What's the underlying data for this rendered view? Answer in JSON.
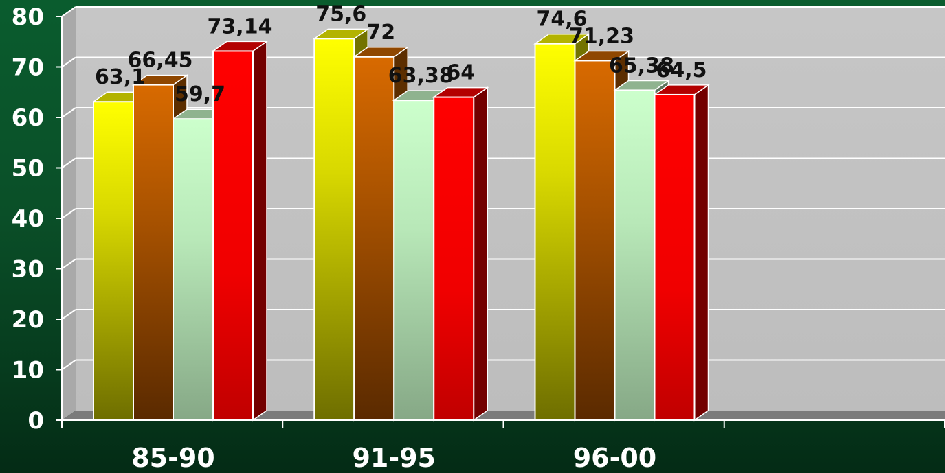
{
  "chart_data": {
    "type": "bar",
    "categories": [
      "85-90",
      "91-95",
      "96-00",
      ""
    ],
    "series": [
      {
        "values": [
          63.1,
          75.6,
          74.6,
          null
        ],
        "labels": [
          "63,1",
          "75,6",
          "74,6",
          ""
        ],
        "color": "#ffff00"
      },
      {
        "values": [
          66.45,
          72,
          71.23,
          null
        ],
        "labels": [
          "66,45",
          "72",
          "71,23",
          ""
        ],
        "color": "#cc6600"
      },
      {
        "values": [
          59.7,
          63.38,
          65.38,
          null
        ],
        "labels": [
          "59,7",
          "63,38",
          "65,38",
          ""
        ],
        "color": "#ccffcc"
      },
      {
        "values": [
          73.14,
          64,
          64.5,
          null
        ],
        "labels": [
          "73,14",
          "64",
          "64,5",
          ""
        ],
        "color": "#ff0000"
      }
    ],
    "ylim": [
      0,
      80
    ],
    "yticks": [
      "0",
      "10",
      "20",
      "30",
      "40",
      "50",
      "60",
      "70",
      "80"
    ],
    "grid": true,
    "three_d": true,
    "title": "",
    "xlabel": "",
    "ylabel": ""
  }
}
